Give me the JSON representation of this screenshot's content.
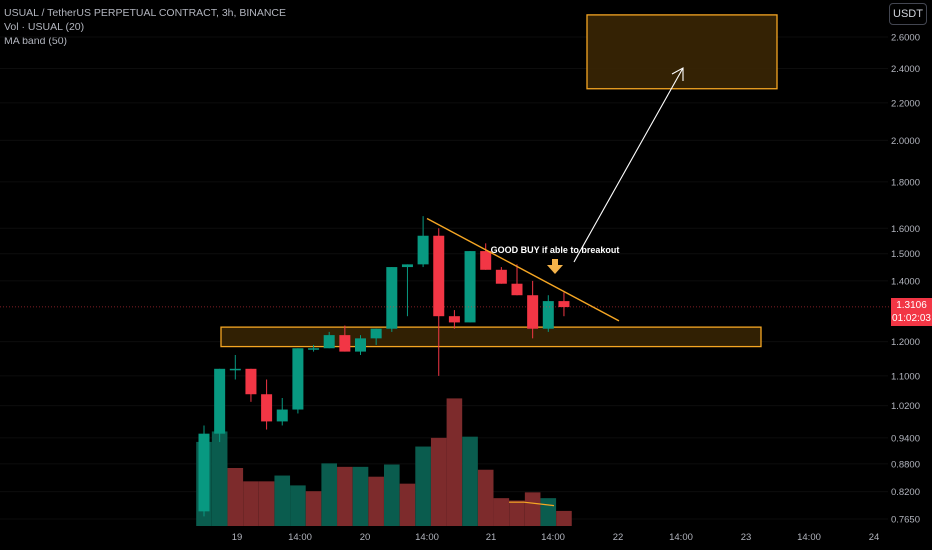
{
  "legend": {
    "symbol": "USUAL / TetherUS PERPETUAL CONTRACT, 3h, BINANCE",
    "vol": "Vol · USUAL (20)",
    "maband": "MA band (50)"
  },
  "currency_button": "USDT",
  "last_price": {
    "price": "1.3106",
    "countdown": "01:02:03"
  },
  "annotation": "GOOD BUY if able to breakout",
  "colors": {
    "up": "#089981",
    "down": "#f23645",
    "vol_up": "#0a5c4e",
    "vol_down": "#7d2b2c",
    "zone": "#f5a623",
    "zone_fill": "#3a2604",
    "ma": "#f5a623",
    "arrow": "#ffffff",
    "marker": "#f5b34a"
  },
  "chart_data": {
    "type": "candlestick",
    "scale": "log",
    "price_ticks": [
      "2.6000",
      "2.4000",
      "2.2000",
      "2.0000",
      "1.8000",
      "1.6000",
      "1.5000",
      "1.4000",
      "1.2000",
      "1.1000",
      "1.0200",
      "0.9400",
      "0.8800",
      "0.8200",
      "0.7650"
    ],
    "time_labels": [
      "19",
      "14:00",
      "20",
      "14:00",
      "21",
      "14:00",
      "22",
      "14:00",
      "23",
      "14:00",
      "24"
    ],
    "candles": [
      {
        "o": 0.78,
        "h": 0.97,
        "l": 0.77,
        "c": 0.95
      },
      {
        "o": 0.95,
        "h": 1.12,
        "l": 0.93,
        "c": 1.12
      },
      {
        "o": 1.12,
        "h": 1.16,
        "l": 1.09,
        "c": 1.12
      },
      {
        "o": 1.12,
        "h": 1.12,
        "l": 1.03,
        "c": 1.05
      },
      {
        "o": 1.05,
        "h": 1.09,
        "l": 0.96,
        "c": 0.98
      },
      {
        "o": 0.98,
        "h": 1.04,
        "l": 0.97,
        "c": 1.01
      },
      {
        "o": 1.01,
        "h": 1.18,
        "l": 1.0,
        "c": 1.18
      },
      {
        "o": 1.18,
        "h": 1.19,
        "l": 1.17,
        "c": 1.18
      },
      {
        "o": 1.18,
        "h": 1.23,
        "l": 1.18,
        "c": 1.22
      },
      {
        "o": 1.22,
        "h": 1.25,
        "l": 1.17,
        "c": 1.17
      },
      {
        "o": 1.17,
        "h": 1.22,
        "l": 1.16,
        "c": 1.21
      },
      {
        "o": 1.21,
        "h": 1.24,
        "l": 1.19,
        "c": 1.24
      },
      {
        "o": 1.24,
        "h": 1.45,
        "l": 1.23,
        "c": 1.45
      },
      {
        "o": 1.45,
        "h": 1.46,
        "l": 1.28,
        "c": 1.46
      },
      {
        "o": 1.46,
        "h": 1.65,
        "l": 1.45,
        "c": 1.57
      },
      {
        "o": 1.57,
        "h": 1.6,
        "l": 1.1,
        "c": 1.28
      },
      {
        "o": 1.28,
        "h": 1.3,
        "l": 1.24,
        "c": 1.26
      },
      {
        "o": 1.26,
        "h": 1.51,
        "l": 1.26,
        "c": 1.51
      },
      {
        "o": 1.51,
        "h": 1.54,
        "l": 1.44,
        "c": 1.44
      },
      {
        "o": 1.44,
        "h": 1.45,
        "l": 1.39,
        "c": 1.39
      },
      {
        "o": 1.39,
        "h": 1.46,
        "l": 1.35,
        "c": 1.35
      },
      {
        "o": 1.35,
        "h": 1.4,
        "l": 1.21,
        "c": 1.24
      },
      {
        "o": 1.24,
        "h": 1.35,
        "l": 1.23,
        "c": 1.33
      },
      {
        "o": 1.33,
        "h": 1.36,
        "l": 1.28,
        "c": 1.31
      }
    ],
    "volume": [
      {
        "v": 1.45,
        "up": true
      },
      {
        "v": 1.63,
        "up": true
      },
      {
        "v": 1.0,
        "up": false
      },
      {
        "v": 0.77,
        "up": false
      },
      {
        "v": 0.77,
        "up": false
      },
      {
        "v": 0.87,
        "up": true
      },
      {
        "v": 0.7,
        "up": true
      },
      {
        "v": 0.6,
        "up": false
      },
      {
        "v": 1.08,
        "up": true
      },
      {
        "v": 1.02,
        "up": false
      },
      {
        "v": 1.02,
        "up": true
      },
      {
        "v": 0.85,
        "up": false
      },
      {
        "v": 1.06,
        "up": true
      },
      {
        "v": 0.73,
        "up": false
      },
      {
        "v": 1.37,
        "up": true
      },
      {
        "v": 1.52,
        "up": false
      },
      {
        "v": 2.2,
        "up": false
      },
      {
        "v": 1.54,
        "up": true
      },
      {
        "v": 0.97,
        "up": false
      },
      {
        "v": 0.48,
        "up": false
      },
      {
        "v": 0.44,
        "up": false
      },
      {
        "v": 0.58,
        "up": false
      },
      {
        "v": 0.48,
        "up": true
      },
      {
        "v": 0.26,
        "up": false
      }
    ],
    "ma_band": [
      0.89,
      0.89,
      0.88,
      0.87
    ],
    "support_zone": {
      "from": 1.185,
      "to": 1.245
    },
    "target_zone": {
      "from": 2.28,
      "to": 2.75
    },
    "trendline": {
      "start_price": 1.64,
      "end_price": 1.265
    },
    "last": 1.3106
  }
}
